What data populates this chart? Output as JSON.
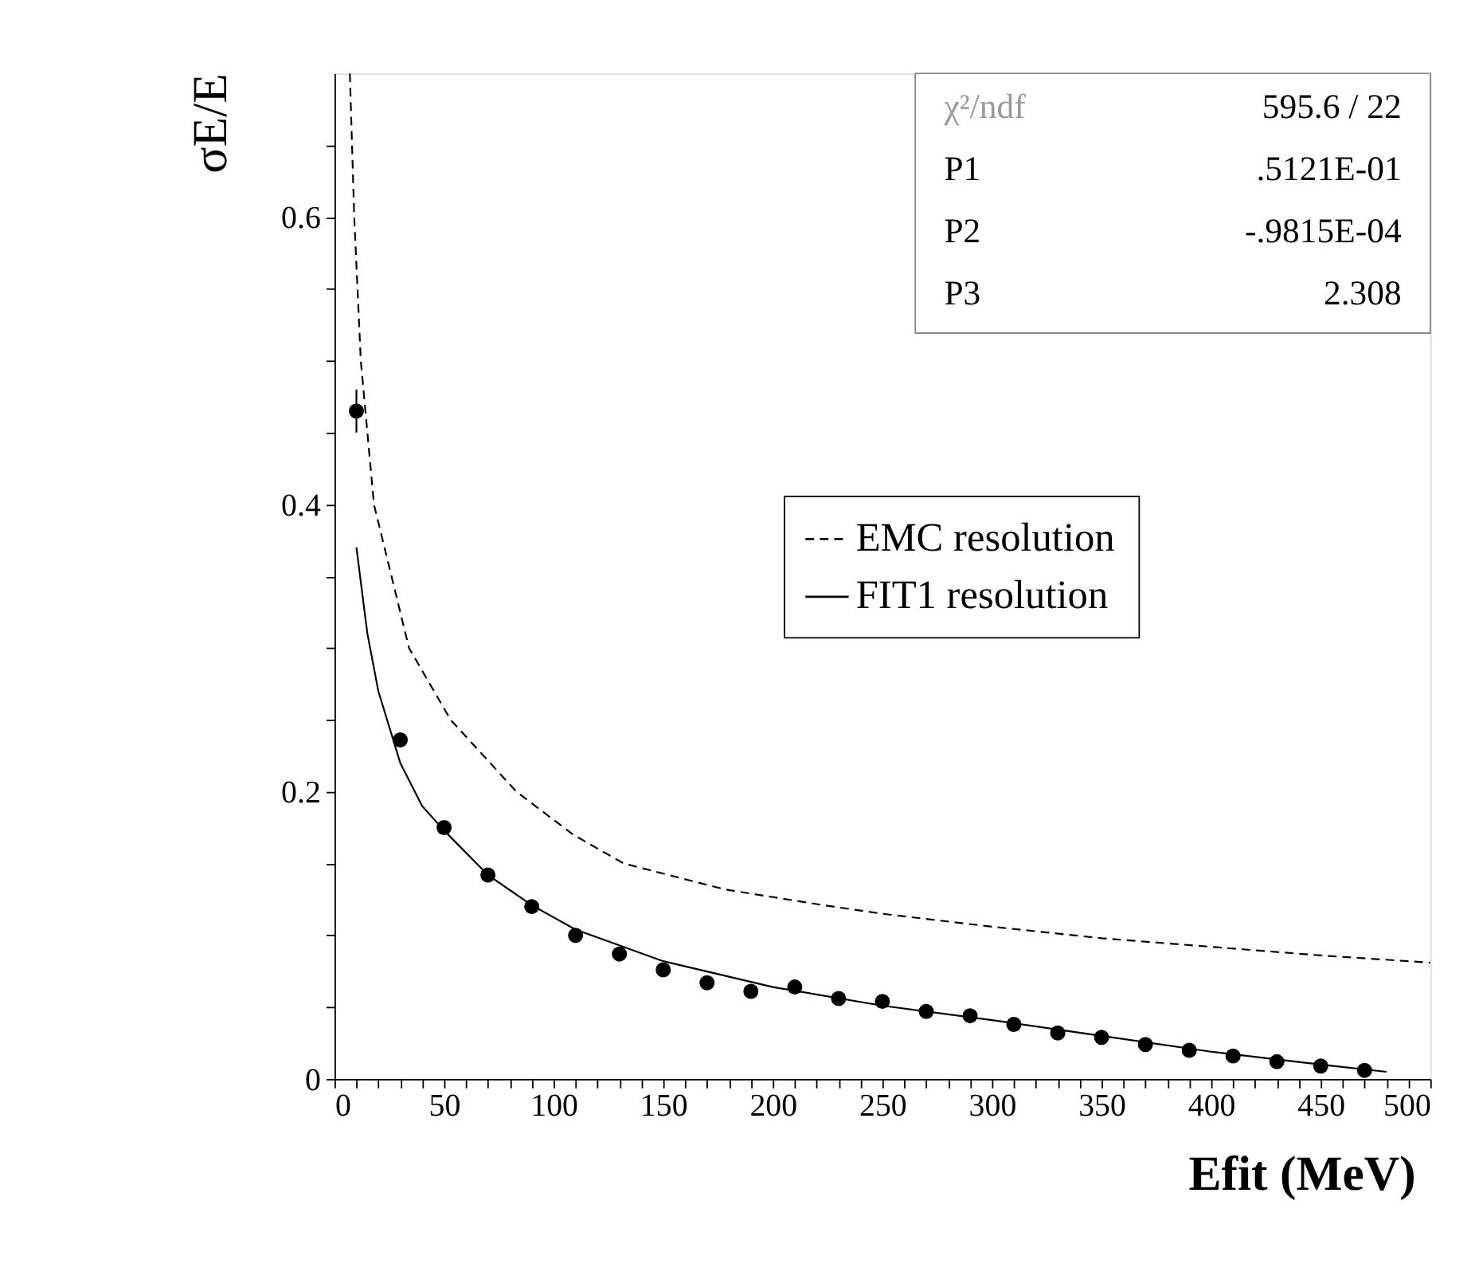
{
  "chart_data": {
    "type": "scatter",
    "xlabel": "Efit (MeV)",
    "ylabel": "σE/E",
    "xlim": [
      0,
      500
    ],
    "ylim": [
      0,
      0.7
    ],
    "xticks": [
      0,
      {
        "value": 10,
        "label": null
      },
      {
        "value": 20,
        "label": null
      },
      {
        "value": 30,
        "label": null
      },
      {
        "value": 40,
        "label": null
      },
      50,
      {
        "value": 60,
        "label": null
      },
      {
        "value": 70,
        "label": null
      },
      {
        "value": 80,
        "label": null
      },
      {
        "value": 90,
        "label": null
      },
      100,
      {
        "value": 110,
        "label": null
      },
      {
        "value": 120,
        "label": null
      },
      {
        "value": 130,
        "label": null
      },
      {
        "value": 140,
        "label": null
      },
      150,
      {
        "value": 160,
        "label": null
      },
      {
        "value": 170,
        "label": null
      },
      {
        "value": 180,
        "label": null
      },
      {
        "value": 190,
        "label": null
      },
      200,
      {
        "value": 210,
        "label": null
      },
      {
        "value": 220,
        "label": null
      },
      {
        "value": 230,
        "label": null
      },
      {
        "value": 240,
        "label": null
      },
      250,
      {
        "value": 260,
        "label": null
      },
      {
        "value": 270,
        "label": null
      },
      {
        "value": 280,
        "label": null
      },
      {
        "value": 290,
        "label": null
      },
      300,
      {
        "value": 310,
        "label": null
      },
      {
        "value": 320,
        "label": null
      },
      {
        "value": 330,
        "label": null
      },
      {
        "value": 340,
        "label": null
      },
      350,
      {
        "value": 360,
        "label": null
      },
      {
        "value": 370,
        "label": null
      },
      {
        "value": 380,
        "label": null
      },
      {
        "value": 390,
        "label": null
      },
      400,
      {
        "value": 410,
        "label": null
      },
      {
        "value": 420,
        "label": null
      },
      {
        "value": 430,
        "label": null
      },
      {
        "value": 440,
        "label": null
      },
      450,
      {
        "value": 460,
        "label": null
      },
      {
        "value": 470,
        "label": null
      },
      {
        "value": 480,
        "label": null
      },
      {
        "value": 490,
        "label": null
      },
      500
    ],
    "yticks": [
      0,
      {
        "value": 0.05,
        "label": null
      },
      {
        "value": 0.1,
        "label": null
      },
      {
        "value": 0.15,
        "label": null
      },
      0.2,
      {
        "value": 0.25,
        "label": null
      },
      {
        "value": 0.3,
        "label": null
      },
      {
        "value": 0.35,
        "label": null
      },
      0.4,
      {
        "value": 0.45,
        "label": null
      },
      {
        "value": 0.5,
        "label": null
      },
      {
        "value": 0.55,
        "label": null
      },
      0.6,
      {
        "value": 0.65,
        "label": null
      }
    ],
    "grid": false,
    "legend": "right",
    "series": [
      {
        "color": "#000000",
        "marker": "circle",
        "x": [
          10,
          30,
          50,
          70,
          90,
          110,
          130,
          150,
          170,
          190,
          210,
          230,
          250,
          270,
          290,
          310,
          330,
          350,
          370,
          390,
          410,
          430,
          450,
          470
        ],
        "values": [
          0.465,
          0.236,
          0.175,
          0.142,
          0.12,
          0.1,
          0.087,
          0.076,
          0.067,
          0.061,
          0.064,
          0.056,
          0.054,
          0.047,
          0.044,
          0.038,
          0.032,
          0.029,
          0.024,
          0.02,
          0.016,
          0.012,
          0.009,
          0.006
        ],
        "errors": [
          0.015,
          null,
          null,
          null,
          null,
          null,
          null,
          null,
          null,
          null,
          null,
          null,
          null,
          null,
          null,
          null,
          null,
          null,
          null,
          null,
          null,
          null,
          null,
          null
        ]
      },
      {
        "type": "line",
        "name": "EMC resolution",
        "color": "#000000",
        "line_style": "dashed",
        "marker": "none",
        "x": [
          7,
          9,
          12,
          18,
          34,
          53,
          83,
          109,
          132,
          178,
          223,
          250,
          300,
          350,
          400,
          450,
          500
        ],
        "values": [
          0.7,
          0.6,
          0.5,
          0.4,
          0.3,
          0.25,
          0.2,
          0.17,
          0.15,
          0.132,
          0.121,
          0.115,
          0.106,
          0.098,
          0.092,
          0.086,
          0.081
        ]
      },
      {
        "type": "line",
        "name": "FIT1  resolution",
        "color": "#000000",
        "line_style": "solid",
        "marker": "none",
        "x": [
          10,
          15,
          20,
          30,
          40,
          50,
          70,
          90,
          110,
          150,
          200,
          250,
          300,
          350,
          400,
          450,
          480
        ],
        "values": [
          0.37,
          0.31,
          0.27,
          0.22,
          0.19,
          0.173,
          0.142,
          0.121,
          0.104,
          0.082,
          0.064,
          0.051,
          0.041,
          0.03,
          0.019,
          0.01,
          0.005
        ]
      }
    ],
    "annotations": [
      "χ²/ndf",
      "595.6   /   22",
      "P1",
      ".5121E-01",
      "P2",
      "-.9815E-04",
      "P3",
      "2.308"
    ]
  }
}
